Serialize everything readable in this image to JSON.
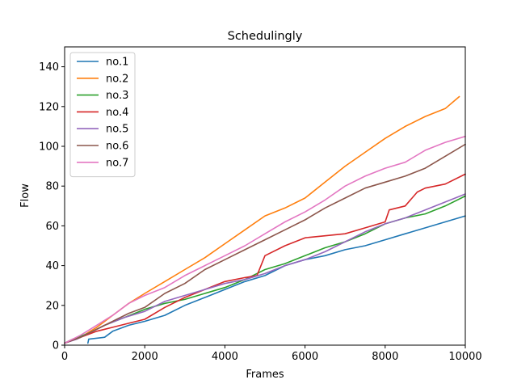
{
  "chart_data": {
    "type": "line",
    "title": "Schedulingly",
    "xlabel": "Frames",
    "ylabel": "Flow",
    "xlim": [
      0,
      10000
    ],
    "ylim": [
      0,
      150
    ],
    "xticks": [
      0,
      2000,
      4000,
      6000,
      8000,
      10000
    ],
    "yticks": [
      0,
      20,
      40,
      60,
      80,
      100,
      120,
      140
    ],
    "grid": false,
    "legend_position": "top-left",
    "series": [
      {
        "name": "no.1",
        "color": "#1f77b4",
        "points": [
          [
            580,
            1
          ],
          [
            600,
            3
          ],
          [
            1000,
            4
          ],
          [
            1200,
            7
          ],
          [
            1600,
            10
          ],
          [
            2000,
            12
          ],
          [
            2500,
            15
          ],
          [
            3000,
            20
          ],
          [
            3500,
            24
          ],
          [
            4000,
            28
          ],
          [
            4500,
            32
          ],
          [
            5000,
            35
          ],
          [
            5500,
            40
          ],
          [
            6000,
            43
          ],
          [
            6500,
            45
          ],
          [
            7000,
            48
          ],
          [
            7500,
            50
          ],
          [
            8000,
            53
          ],
          [
            8500,
            56
          ],
          [
            9000,
            59
          ],
          [
            9500,
            62
          ],
          [
            10000,
            65
          ]
        ]
      },
      {
        "name": "no.2",
        "color": "#ff7f0e",
        "points": [
          [
            0,
            1
          ],
          [
            400,
            4
          ],
          [
            800,
            9
          ],
          [
            1200,
            15
          ],
          [
            1600,
            21
          ],
          [
            2000,
            26
          ],
          [
            2500,
            32
          ],
          [
            3000,
            38
          ],
          [
            3500,
            44
          ],
          [
            4000,
            51
          ],
          [
            4500,
            58
          ],
          [
            5000,
            65
          ],
          [
            5500,
            69
          ],
          [
            6000,
            74
          ],
          [
            6500,
            82
          ],
          [
            7000,
            90
          ],
          [
            7500,
            97
          ],
          [
            8000,
            104
          ],
          [
            8500,
            110
          ],
          [
            9000,
            115
          ],
          [
            9500,
            119
          ],
          [
            9850,
            125
          ]
        ]
      },
      {
        "name": "no.3",
        "color": "#2ca02c",
        "points": [
          [
            0,
            1
          ],
          [
            200,
            3
          ],
          [
            600,
            6
          ],
          [
            1000,
            10
          ],
          [
            1500,
            14
          ],
          [
            2000,
            18
          ],
          [
            2500,
            21
          ],
          [
            3000,
            23
          ],
          [
            3500,
            26
          ],
          [
            4000,
            29
          ],
          [
            4500,
            33
          ],
          [
            5000,
            38
          ],
          [
            5500,
            41
          ],
          [
            6000,
            45
          ],
          [
            6500,
            49
          ],
          [
            7000,
            52
          ],
          [
            7500,
            56
          ],
          [
            8000,
            61
          ],
          [
            8500,
            64
          ],
          [
            9000,
            66
          ],
          [
            9500,
            70
          ],
          [
            10000,
            75
          ]
        ]
      },
      {
        "name": "no.4",
        "color": "#d62728",
        "points": [
          [
            0,
            1
          ],
          [
            400,
            4
          ],
          [
            800,
            7
          ],
          [
            1200,
            9
          ],
          [
            1600,
            11
          ],
          [
            2000,
            13
          ],
          [
            2500,
            19
          ],
          [
            3000,
            24
          ],
          [
            3500,
            28
          ],
          [
            4000,
            32
          ],
          [
            4500,
            34
          ],
          [
            4800,
            35
          ],
          [
            5000,
            45
          ],
          [
            5500,
            50
          ],
          [
            6000,
            54
          ],
          [
            6500,
            55
          ],
          [
            7000,
            56
          ],
          [
            7500,
            59
          ],
          [
            8000,
            62
          ],
          [
            8100,
            68
          ],
          [
            8500,
            70
          ],
          [
            8800,
            77
          ],
          [
            9000,
            79
          ],
          [
            9500,
            81
          ],
          [
            10000,
            86
          ]
        ]
      },
      {
        "name": "no.5",
        "color": "#9467bd",
        "points": [
          [
            0,
            1
          ],
          [
            300,
            3
          ],
          [
            700,
            7
          ],
          [
            1000,
            10
          ],
          [
            1500,
            14
          ],
          [
            2000,
            17
          ],
          [
            2500,
            22
          ],
          [
            3000,
            25
          ],
          [
            3500,
            28
          ],
          [
            4000,
            31
          ],
          [
            4500,
            33
          ],
          [
            5000,
            36
          ],
          [
            5500,
            40
          ],
          [
            6000,
            43
          ],
          [
            6500,
            47
          ],
          [
            7000,
            52
          ],
          [
            7500,
            57
          ],
          [
            8000,
            61
          ],
          [
            8500,
            64
          ],
          [
            9000,
            68
          ],
          [
            9500,
            72
          ],
          [
            10000,
            76
          ]
        ]
      },
      {
        "name": "no.6",
        "color": "#8c564b",
        "points": [
          [
            0,
            1
          ],
          [
            400,
            4
          ],
          [
            800,
            8
          ],
          [
            1200,
            12
          ],
          [
            1600,
            16
          ],
          [
            2000,
            19
          ],
          [
            2500,
            26
          ],
          [
            3000,
            31
          ],
          [
            3500,
            38
          ],
          [
            4000,
            43
          ],
          [
            4500,
            48
          ],
          [
            5000,
            53
          ],
          [
            5500,
            58
          ],
          [
            6000,
            63
          ],
          [
            6500,
            69
          ],
          [
            7000,
            74
          ],
          [
            7500,
            79
          ],
          [
            8000,
            82
          ],
          [
            8500,
            85
          ],
          [
            9000,
            89
          ],
          [
            9500,
            95
          ],
          [
            10000,
            101
          ]
        ]
      },
      {
        "name": "no.7",
        "color": "#e377c2",
        "points": [
          [
            0,
            1
          ],
          [
            400,
            5
          ],
          [
            800,
            10
          ],
          [
            1200,
            15
          ],
          [
            1600,
            21
          ],
          [
            2000,
            25
          ],
          [
            2500,
            29
          ],
          [
            3000,
            35
          ],
          [
            3500,
            40
          ],
          [
            4000,
            45
          ],
          [
            4500,
            50
          ],
          [
            5000,
            56
          ],
          [
            5500,
            62
          ],
          [
            6000,
            67
          ],
          [
            6500,
            73
          ],
          [
            7000,
            80
          ],
          [
            7500,
            85
          ],
          [
            8000,
            89
          ],
          [
            8500,
            92
          ],
          [
            9000,
            98
          ],
          [
            9500,
            102
          ],
          [
            10000,
            105
          ]
        ]
      }
    ]
  }
}
